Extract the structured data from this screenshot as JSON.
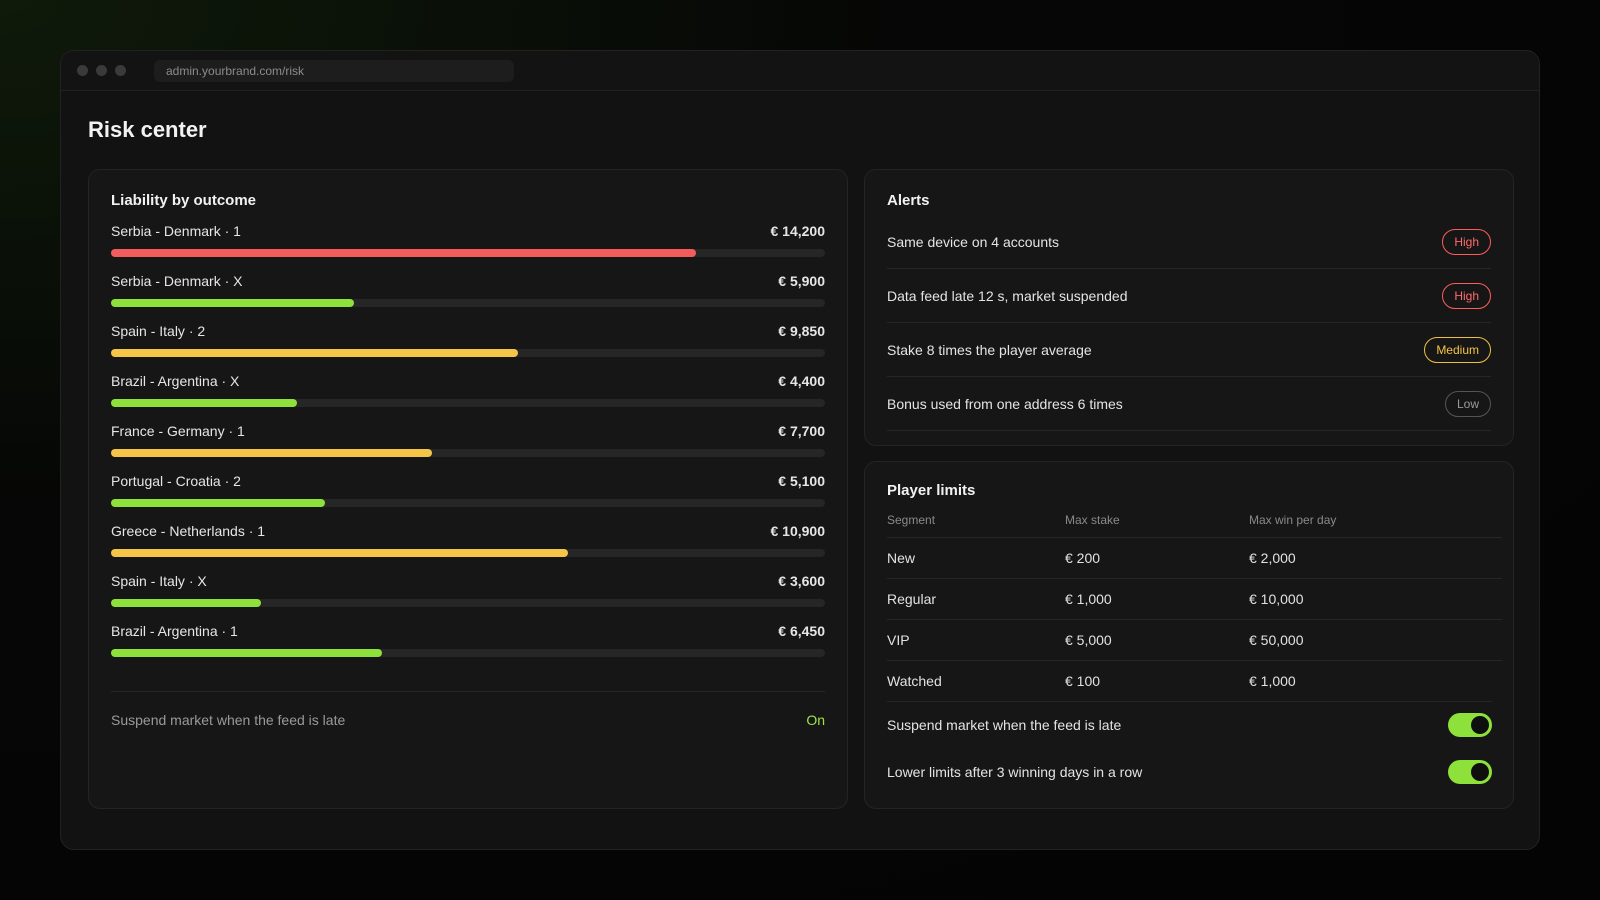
{
  "browser": {
    "url": "admin.yourbrand.com/risk"
  },
  "page": {
    "title": "Risk center"
  },
  "liability": {
    "title": "Liability by outcome",
    "rows": [
      {
        "label": "Serbia - Denmark · 1",
        "value": "€ 14,200",
        "fill": 0.82,
        "color": "#f25c5c"
      },
      {
        "label": "Serbia - Denmark · X",
        "value": "€ 5,900",
        "fill": 0.34,
        "color": "#8ee13a"
      },
      {
        "label": "Spain - Italy · 2",
        "value": "€ 9,850",
        "fill": 0.57,
        "color": "#f4c546"
      },
      {
        "label": "Brazil - Argentina · X",
        "value": "€ 4,400",
        "fill": 0.26,
        "color": "#8ee13a"
      },
      {
        "label": "France - Germany · 1",
        "value": "€ 7,700",
        "fill": 0.45,
        "color": "#f4c546"
      },
      {
        "label": "Portugal - Croatia · 2",
        "value": "€ 5,100",
        "fill": 0.3,
        "color": "#8ee13a"
      },
      {
        "label": "Greece - Netherlands · 1",
        "value": "€ 10,900",
        "fill": 0.64,
        "color": "#f4c546"
      },
      {
        "label": "Spain - Italy · X",
        "value": "€ 3,600",
        "fill": 0.21,
        "color": "#8ee13a"
      },
      {
        "label": "Brazil - Argentina · 1",
        "value": "€ 6,450",
        "fill": 0.38,
        "color": "#8ee13a"
      }
    ],
    "footer": {
      "label": "Suspend market when the feed is late",
      "state": "On"
    }
  },
  "alerts": {
    "title": "Alerts",
    "items": [
      {
        "text": "Same device on 4 accounts",
        "severity": "High",
        "level": "high"
      },
      {
        "text": "Data feed late 12 s, market suspended",
        "severity": "High",
        "level": "high"
      },
      {
        "text": "Stake 8 times the player average",
        "severity": "Medium",
        "level": "medium"
      },
      {
        "text": "Bonus used from one address 6 times",
        "severity": "Low",
        "level": "low"
      }
    ]
  },
  "limits": {
    "title": "Player limits",
    "columns": [
      "Segment",
      "Max stake",
      "Max win per day"
    ],
    "rows": [
      [
        "New",
        "€ 200",
        "€ 2,000"
      ],
      [
        "Regular",
        "€ 1,000",
        "€ 10,000"
      ],
      [
        "VIP",
        "€ 5,000",
        "€ 50,000"
      ],
      [
        "Watched",
        "€ 100",
        "€ 1,000"
      ]
    ],
    "toggles": [
      {
        "label": "Suspend market when the feed is late",
        "on": true
      },
      {
        "label": "Lower limits after 3 winning days in a row",
        "on": true
      }
    ]
  }
}
